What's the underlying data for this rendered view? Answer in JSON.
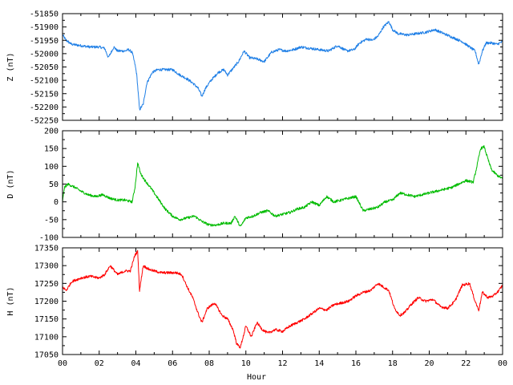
{
  "chart_data": [
    {
      "type": "line",
      "ylabel": "Z (nT)",
      "ylim": [
        -52250,
        -51850
      ],
      "yticks": [
        -51850,
        -51900,
        -51950,
        -52000,
        -52050,
        -52100,
        -52150,
        -52200,
        -52250
      ],
      "xlim": [
        0,
        24
      ],
      "color": "#1f7fe6",
      "x": [
        0,
        0.2,
        0.5,
        1.0,
        1.5,
        2.0,
        2.3,
        2.5,
        2.8,
        3.0,
        3.4,
        3.6,
        3.8,
        3.95,
        4.05,
        4.2,
        4.4,
        4.6,
        4.9,
        5.2,
        5.6,
        6.0,
        6.4,
        6.8,
        7.1,
        7.4,
        7.6,
        7.8,
        8.1,
        8.5,
        8.8,
        9.0,
        9.3,
        9.6,
        9.9,
        10.2,
        10.6,
        11.0,
        11.4,
        11.8,
        12.2,
        12.6,
        13.0,
        13.5,
        14.0,
        14.5,
        15.0,
        15.5,
        15.9,
        16.2,
        16.6,
        16.9,
        17.2,
        17.5,
        17.8,
        18.0,
        18.3,
        18.8,
        19.3,
        19.8,
        20.3,
        20.8,
        21.3,
        21.8,
        22.2,
        22.5,
        22.7,
        22.9,
        23.1,
        23.4,
        23.7,
        24.0
      ],
      "values": [
        -51930,
        -51950,
        -51965,
        -51970,
        -51975,
        -51975,
        -51980,
        -52015,
        -51975,
        -51990,
        -51990,
        -51985,
        -51995,
        -52040,
        -52080,
        -52210,
        -52190,
        -52110,
        -52070,
        -52060,
        -52060,
        -52060,
        -52080,
        -52095,
        -52110,
        -52130,
        -52160,
        -52130,
        -52100,
        -52070,
        -52060,
        -52080,
        -52055,
        -52030,
        -51990,
        -52015,
        -52020,
        -52030,
        -51995,
        -51985,
        -51990,
        -51985,
        -51975,
        -51980,
        -51985,
        -51990,
        -51970,
        -51990,
        -51985,
        -51960,
        -51945,
        -51950,
        -51935,
        -51900,
        -51880,
        -51910,
        -51925,
        -51930,
        -51925,
        -51920,
        -51910,
        -51925,
        -51940,
        -51955,
        -51975,
        -51990,
        -52040,
        -51990,
        -51960,
        -51960,
        -51965,
        -51955
      ]
    },
    {
      "type": "line",
      "ylabel": "D (nT)",
      "ylim": [
        -100,
        200
      ],
      "yticks": [
        200,
        150,
        100,
        50,
        0,
        -50,
        -100
      ],
      "xlim": [
        0,
        24
      ],
      "color": "#00bb00",
      "x": [
        0,
        0.1,
        0.3,
        0.7,
        1.0,
        1.4,
        1.8,
        2.2,
        2.6,
        3.0,
        3.4,
        3.8,
        3.95,
        4.1,
        4.25,
        4.5,
        4.8,
        5.2,
        5.6,
        6.0,
        6.4,
        6.8,
        7.2,
        7.6,
        8.0,
        8.4,
        8.8,
        9.2,
        9.4,
        9.7,
        10.0,
        10.4,
        10.8,
        11.2,
        11.6,
        12.0,
        12.4,
        12.8,
        13.2,
        13.6,
        14.0,
        14.4,
        14.8,
        15.2,
        15.6,
        16.0,
        16.4,
        16.8,
        17.2,
        17.6,
        18.0,
        18.4,
        18.8,
        19.2,
        19.6,
        20.0,
        20.4,
        20.8,
        21.2,
        21.6,
        22.0,
        22.4,
        22.6,
        22.8,
        23.0,
        23.2,
        23.4,
        23.7,
        24.0
      ],
      "values": [
        0,
        40,
        50,
        40,
        30,
        20,
        15,
        20,
        10,
        5,
        5,
        0,
        40,
        110,
        80,
        60,
        40,
        10,
        -20,
        -40,
        -50,
        -45,
        -40,
        -55,
        -65,
        -65,
        -60,
        -60,
        -40,
        -70,
        -45,
        -40,
        -30,
        -25,
        -40,
        -35,
        -30,
        -20,
        -15,
        0,
        -10,
        15,
        0,
        5,
        10,
        15,
        -25,
        -20,
        -15,
        0,
        5,
        25,
        20,
        15,
        20,
        25,
        30,
        35,
        40,
        50,
        60,
        55,
        100,
        150,
        155,
        120,
        90,
        75,
        65
      ]
    },
    {
      "type": "line",
      "ylabel": "H (nT)",
      "xlabel": "Hour",
      "ylim": [
        17050,
        17350
      ],
      "yticks": [
        17350,
        17300,
        17250,
        17200,
        17150,
        17100,
        17050
      ],
      "xlim": [
        0,
        24
      ],
      "xticks": [
        "00",
        "02",
        "04",
        "06",
        "08",
        "10",
        "12",
        "14",
        "16",
        "18",
        "20",
        "22",
        "00"
      ],
      "color": "#ff0000",
      "x": [
        0,
        0.2,
        0.5,
        1.0,
        1.5,
        2.0,
        2.3,
        2.6,
        3.0,
        3.4,
        3.7,
        3.95,
        4.1,
        4.2,
        4.4,
        4.7,
        5.0,
        5.4,
        5.8,
        6.2,
        6.5,
        6.8,
        7.1,
        7.4,
        7.6,
        7.9,
        8.3,
        8.7,
        9.0,
        9.3,
        9.5,
        9.7,
        10.0,
        10.3,
        10.6,
        10.9,
        11.2,
        11.6,
        12.0,
        12.4,
        12.8,
        13.2,
        13.6,
        14.0,
        14.4,
        14.8,
        15.2,
        15.6,
        16.0,
        16.4,
        16.8,
        17.2,
        17.5,
        17.8,
        18.1,
        18.4,
        18.7,
        19.0,
        19.4,
        19.8,
        20.2,
        20.6,
        21.0,
        21.4,
        21.8,
        22.2,
        22.5,
        22.7,
        22.9,
        23.2,
        23.5,
        23.8,
        24.0
      ],
      "values": [
        17240,
        17230,
        17255,
        17265,
        17270,
        17265,
        17275,
        17300,
        17275,
        17285,
        17285,
        17330,
        17340,
        17230,
        17300,
        17290,
        17285,
        17280,
        17280,
        17280,
        17275,
        17240,
        17210,
        17165,
        17140,
        17180,
        17195,
        17160,
        17150,
        17120,
        17080,
        17070,
        17130,
        17100,
        17140,
        17120,
        17110,
        17120,
        17115,
        17130,
        17140,
        17150,
        17165,
        17180,
        17175,
        17190,
        17195,
        17200,
        17215,
        17225,
        17230,
        17250,
        17240,
        17230,
        17180,
        17160,
        17170,
        17190,
        17210,
        17200,
        17205,
        17185,
        17180,
        17200,
        17245,
        17250,
        17200,
        17175,
        17225,
        17210,
        17215,
        17230,
        17245
      ]
    }
  ]
}
